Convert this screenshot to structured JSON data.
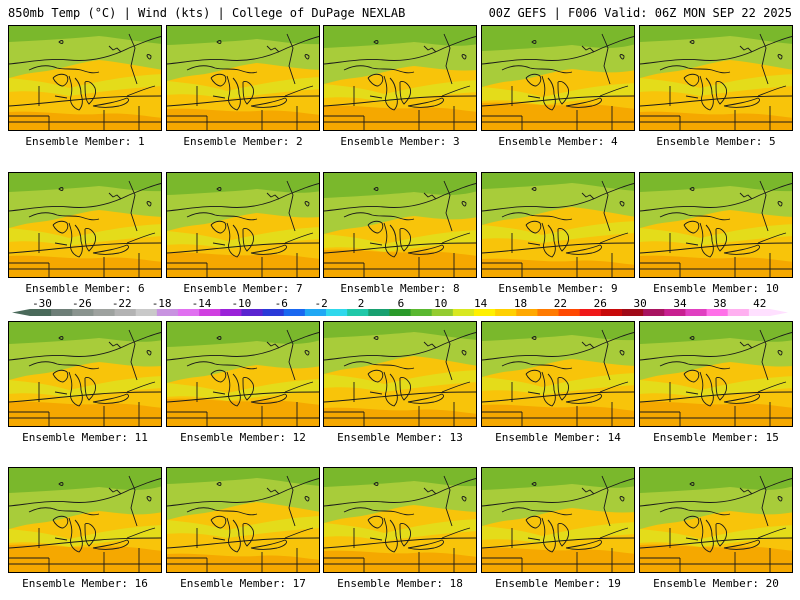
{
  "header": {
    "left": "850mb Temp (°C) | Wind (kts) | College of DuPage NEXLAB",
    "right": "00Z GEFS | F006 Valid: 06Z MON SEP 22 2025"
  },
  "members": [
    "Ensemble Member: 1",
    "Ensemble Member: 2",
    "Ensemble Member: 3",
    "Ensemble Member: 4",
    "Ensemble Member: 5",
    "Ensemble Member: 6",
    "Ensemble Member: 7",
    "Ensemble Member: 8",
    "Ensemble Member: 9",
    "Ensemble Member: 10",
    "Ensemble Member: 11",
    "Ensemble Member: 12",
    "Ensemble Member: 13",
    "Ensemble Member: 14",
    "Ensemble Member: 15",
    "Ensemble Member: 16",
    "Ensemble Member: 17",
    "Ensemble Member: 18",
    "Ensemble Member: 19",
    "Ensemble Member: 20"
  ],
  "colorbar": {
    "labels": [
      "-30",
      "-26",
      "-22",
      "-18",
      "-14",
      "-10",
      "-6",
      "-2",
      "2",
      "6",
      "10",
      "14",
      "18",
      "22",
      "26",
      "30",
      "34",
      "38",
      "42"
    ],
    "colors": [
      "#4a6a5a",
      "#6e7f78",
      "#8a948f",
      "#9ea29f",
      "#b3b3b3",
      "#c9c9c9",
      "#c893e0",
      "#e070f0",
      "#d040e0",
      "#9a22d8",
      "#5a24d0",
      "#2a3ad8",
      "#1a68f0",
      "#20a8f4",
      "#30d8ec",
      "#20c8a8",
      "#18a070",
      "#2a9a2a",
      "#5ab830",
      "#94cc30",
      "#d8e820",
      "#fff000",
      "#ffd000",
      "#ffa800",
      "#ff7a00",
      "#ff4800",
      "#f01818",
      "#c80a0a",
      "#a00a18",
      "#a81460",
      "#c82090",
      "#e040c0",
      "#ff70e8",
      "#ffb0f0",
      "#ffe0ff"
    ]
  },
  "colors": {
    "warm": "#f8c40a",
    "mid": "#e4dc1a",
    "cool": "#a8cc3a",
    "cold": "#7ab82c",
    "hot": "#f5a800",
    "lines": "#1a1a1a"
  }
}
